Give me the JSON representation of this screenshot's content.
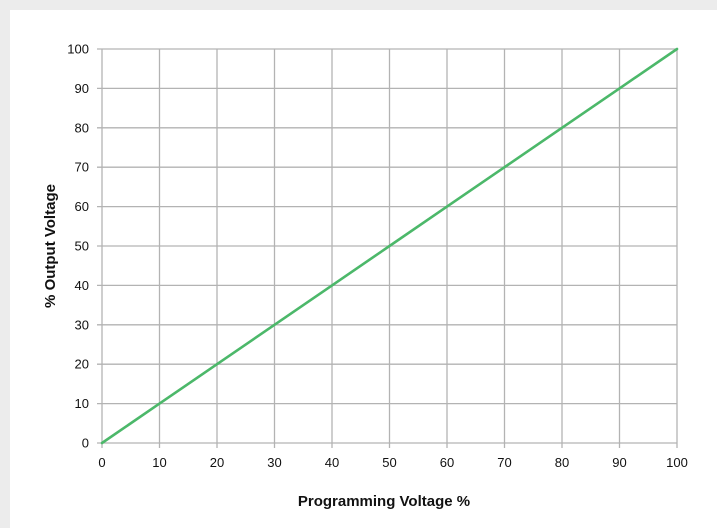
{
  "chart_data": {
    "type": "line",
    "title": "",
    "xlabel": "Programming Voltage %",
    "ylabel": "% Output Voltage",
    "xlim": [
      0,
      100
    ],
    "ylim": [
      0,
      100
    ],
    "xticks": [
      "0",
      "10",
      "20",
      "30",
      "40",
      "50",
      "60",
      "70",
      "80",
      "90",
      "100"
    ],
    "yticks": [
      "0",
      "10",
      "20",
      "30",
      "40",
      "50",
      "60",
      "70",
      "80",
      "90",
      "100"
    ],
    "grid": true,
    "legend": "none",
    "series": [
      {
        "color": "#4cb86a",
        "x": [
          0,
          10,
          20,
          30,
          40,
          50,
          60,
          70,
          80,
          90,
          100
        ],
        "y": [
          0,
          10,
          20,
          30,
          40,
          50,
          60,
          70,
          80,
          90,
          100
        ]
      }
    ],
    "colors": {
      "grid": "#b3b3b3",
      "line": "#4cb86a"
    }
  }
}
